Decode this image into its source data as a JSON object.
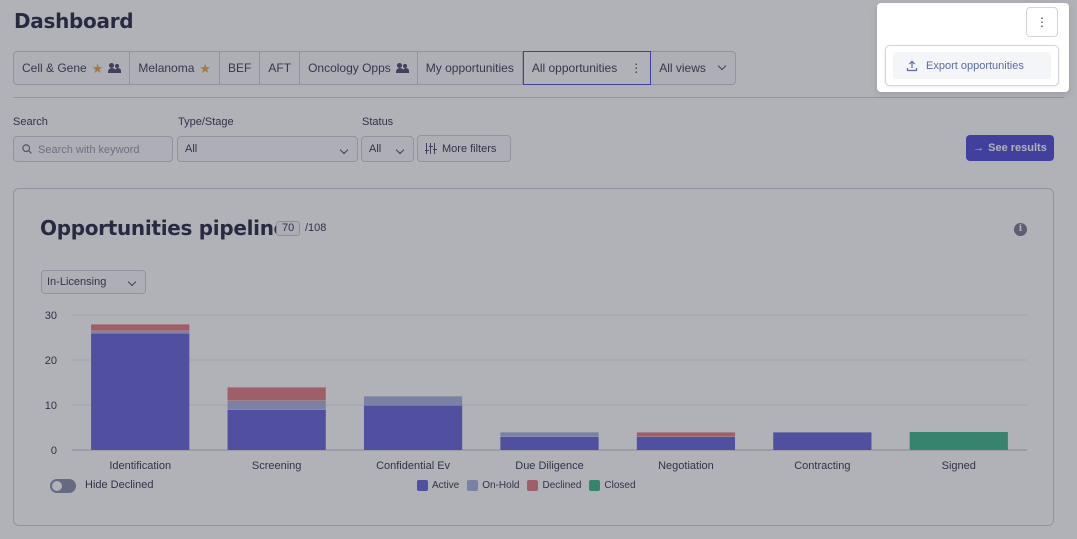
{
  "header": {
    "title": "Dashboard"
  },
  "views": [
    {
      "label": "Cell & Gene",
      "star": true,
      "shared": true
    },
    {
      "label": "Melanoma",
      "star": true,
      "shared": false
    },
    {
      "label": "BEF",
      "star": false,
      "shared": false
    },
    {
      "label": "AFT",
      "star": false,
      "shared": false
    },
    {
      "label": "Oncology Opps",
      "star": false,
      "shared": true
    },
    {
      "label": "My opportunities",
      "star": false,
      "shared": false
    },
    {
      "label": "All opportunities",
      "active": true,
      "kebab": "⋮"
    },
    {
      "label": "All views",
      "dropdown": true
    }
  ],
  "filters": {
    "search_label": "Search",
    "search_placeholder": "Search with keyword",
    "type_label": "Type/Stage",
    "type_value": "All",
    "status_label": "Status",
    "status_value": "All",
    "more_filters": "More filters",
    "see_results": "See results"
  },
  "pipeline": {
    "title": "Opportunities pipeline",
    "count": "70",
    "total": "/108",
    "info_icon": "i",
    "type_select": "In-Licensing",
    "hide_declined": "Hide Declined"
  },
  "chart_data": {
    "type": "bar",
    "stacked": true,
    "categories": [
      "Identification",
      "Screening",
      "Confidential Ev",
      "Due Diligence",
      "Negotiation",
      "Contracting",
      "Signed"
    ],
    "ylim": [
      0,
      30
    ],
    "yticks": [
      0,
      10,
      20,
      30
    ],
    "grid": true,
    "legend_position": "bottom",
    "series": [
      {
        "name": "Active",
        "color": "#5a55d6",
        "values": [
          26,
          9,
          10,
          3,
          3,
          4,
          0
        ]
      },
      {
        "name": "On-Hold",
        "color": "#a2a9de",
        "values": [
          0.5,
          2,
          2,
          1,
          0,
          0,
          0
        ]
      },
      {
        "name": "Declined",
        "color": "#e07078",
        "values": [
          1.5,
          3,
          0,
          0,
          1,
          0,
          0
        ]
      },
      {
        "name": "Closed",
        "color": "#2fae7e",
        "values": [
          0,
          0,
          0,
          0,
          0,
          0,
          4
        ]
      }
    ]
  },
  "popover": {
    "kebab": "⋮",
    "export_label": "Export opportunities"
  }
}
